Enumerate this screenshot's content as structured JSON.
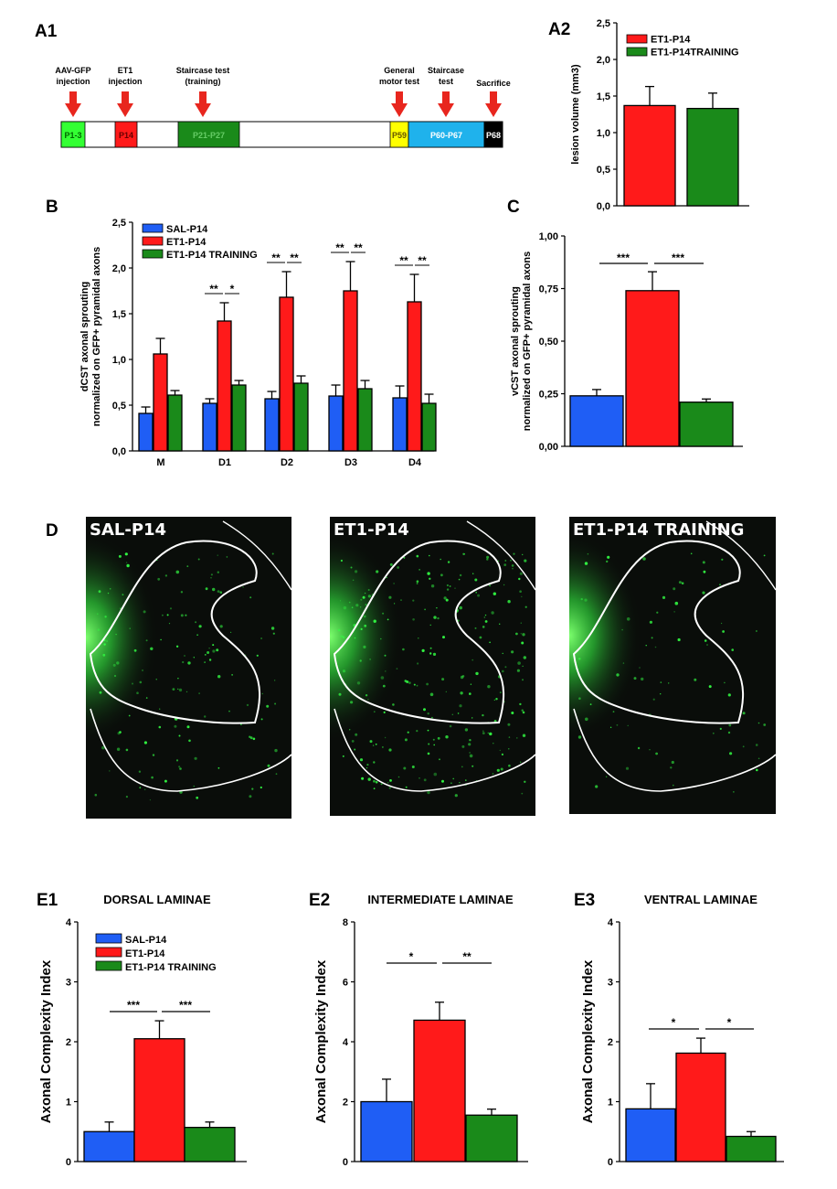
{
  "labels": {
    "a1": "A1",
    "a2": "A2",
    "b": "B",
    "c": "C",
    "d": "D",
    "e1": "E1",
    "e2": "E2",
    "e3": "E3"
  },
  "colors": {
    "sal": "#1f5ef5",
    "et1": "#ff1a1a",
    "training": "#1a8a1a",
    "arrow": "#e8261e",
    "image_bg": "#0a0d0a",
    "fluor": "#33ff44"
  },
  "timeline": {
    "events": [
      {
        "label": "AAV-GFP\ninjection"
      },
      {
        "label": "ET1\ninjection"
      },
      {
        "label": "Staircase test\n(training)"
      },
      {
        "label": "General\nmotor test"
      },
      {
        "label": "Staircase\ntest"
      },
      {
        "label": "Sacrifice"
      }
    ],
    "segments": [
      {
        "label": "P1-3",
        "color": "#33ff33",
        "text_color": "#006600"
      },
      {
        "label": "P14",
        "color": "#ff1a1a",
        "text_color": "#660000"
      },
      {
        "label": "P21-P27",
        "color": "#1a8a1a",
        "text_color": "#66cc66"
      },
      {
        "label": "P59",
        "color": "#ffff00",
        "text_color": "#665500"
      },
      {
        "label": "P60-P67",
        "color": "#1fb2ec",
        "text_color": "#ffffff"
      },
      {
        "label": "P68",
        "color": "#000000",
        "text_color": "#ffffff"
      }
    ]
  },
  "legend3": [
    "SAL-P14",
    "ET1-P14",
    "ET1-P14 TRAINING"
  ],
  "legend2": [
    "ET1-P14",
    "ET1-P14TRAINING"
  ],
  "chart_data": [
    {
      "id": "A2",
      "type": "bar",
      "ylabel": "lesion volume (mm3)",
      "ylim": [
        0,
        2.5
      ],
      "yticks": [
        "0,0",
        "0,5",
        "1,0",
        "1,5",
        "2,0",
        "2,5"
      ],
      "categories": [
        "ET1-P14",
        "ET1-P14TRAINING"
      ],
      "values": [
        1.37,
        1.33
      ],
      "errors": [
        0.26,
        0.21
      ],
      "series_colors": [
        "#ff1a1a",
        "#1a8a1a"
      ]
    },
    {
      "id": "B",
      "type": "bar",
      "ylabel": "dCST axonal sprouting\nnormalized on GFP+ pyramidal axons",
      "ylim": [
        0,
        2.5
      ],
      "yticks": [
        "0,0",
        "0,5",
        "1,0",
        "1,5",
        "2,0",
        "2,5"
      ],
      "categories": [
        "M",
        "D1",
        "D2",
        "D3",
        "D4"
      ],
      "series": [
        {
          "name": "SAL-P14",
          "values": [
            0.41,
            0.52,
            0.57,
            0.6,
            0.58
          ],
          "errors": [
            0.07,
            0.05,
            0.08,
            0.12,
            0.13
          ]
        },
        {
          "name": "ET1-P14",
          "values": [
            1.06,
            1.42,
            1.68,
            1.75,
            1.63
          ],
          "errors": [
            0.17,
            0.2,
            0.28,
            0.32,
            0.3
          ]
        },
        {
          "name": "ET1-P14 TRAINING",
          "values": [
            0.61,
            0.72,
            0.74,
            0.68,
            0.52
          ],
          "errors": [
            0.05,
            0.05,
            0.08,
            0.09,
            0.1
          ]
        }
      ],
      "significance": [
        {
          "cat": 1,
          "left": "**",
          "right": "*"
        },
        {
          "cat": 2,
          "left": "**",
          "right": "**"
        },
        {
          "cat": 3,
          "left": "**",
          "right": "**"
        },
        {
          "cat": 4,
          "left": "**",
          "right": "**"
        }
      ]
    },
    {
      "id": "C",
      "type": "bar",
      "ylabel": "vCST axonal sprouting\nnormalized on GFP+ pyramidal axons",
      "ylim": [
        0,
        1.0
      ],
      "yticks": [
        "0,00",
        "0,25",
        "0,50",
        "0,75",
        "1,00"
      ],
      "categories": [
        "SAL-P14",
        "ET1-P14",
        "ET1-P14 TRAINING"
      ],
      "values": [
        0.24,
        0.74,
        0.21
      ],
      "errors": [
        0.03,
        0.09,
        0.015
      ],
      "significance": [
        "***",
        "***"
      ]
    },
    {
      "id": "E1",
      "type": "bar",
      "title": "DORSAL LAMINAE",
      "ylabel": "Axonal Complexity Index",
      "ylim": [
        0,
        4
      ],
      "yticks": [
        "0",
        "1",
        "2",
        "3",
        "4"
      ],
      "categories": [
        "SAL-P14",
        "ET1-P14",
        "ET1-P14 TRAINING"
      ],
      "values": [
        0.5,
        2.05,
        0.57
      ],
      "errors": [
        0.16,
        0.3,
        0.09
      ],
      "significance": [
        "***",
        "***"
      ]
    },
    {
      "id": "E2",
      "type": "bar",
      "title": "INTERMEDIATE LAMINAE",
      "ylabel": "Axonal Complexity Index",
      "ylim": [
        0,
        8
      ],
      "yticks": [
        "0",
        "2",
        "4",
        "6",
        "8"
      ],
      "categories": [
        "SAL-P14",
        "ET1-P14",
        "ET1-P14 TRAINING"
      ],
      "values": [
        2.0,
        4.72,
        1.55
      ],
      "errors": [
        0.75,
        0.6,
        0.2
      ],
      "significance": [
        "*",
        "**"
      ]
    },
    {
      "id": "E3",
      "type": "bar",
      "title": "VENTRAL LAMINAE",
      "ylabel": "Axonal Complexity Index",
      "ylim": [
        0,
        4
      ],
      "yticks": [
        "0",
        "1",
        "2",
        "3",
        "4"
      ],
      "categories": [
        "SAL-P14",
        "ET1-P14",
        "ET1-P14 TRAINING"
      ],
      "values": [
        0.88,
        1.81,
        0.42
      ],
      "errors": [
        0.42,
        0.25,
        0.08
      ],
      "significance": [
        "*",
        "*"
      ]
    }
  ],
  "images": [
    {
      "title": "SAL-P14"
    },
    {
      "title": "ET1-P14"
    },
    {
      "title": "ET1-P14 TRAINING"
    }
  ]
}
